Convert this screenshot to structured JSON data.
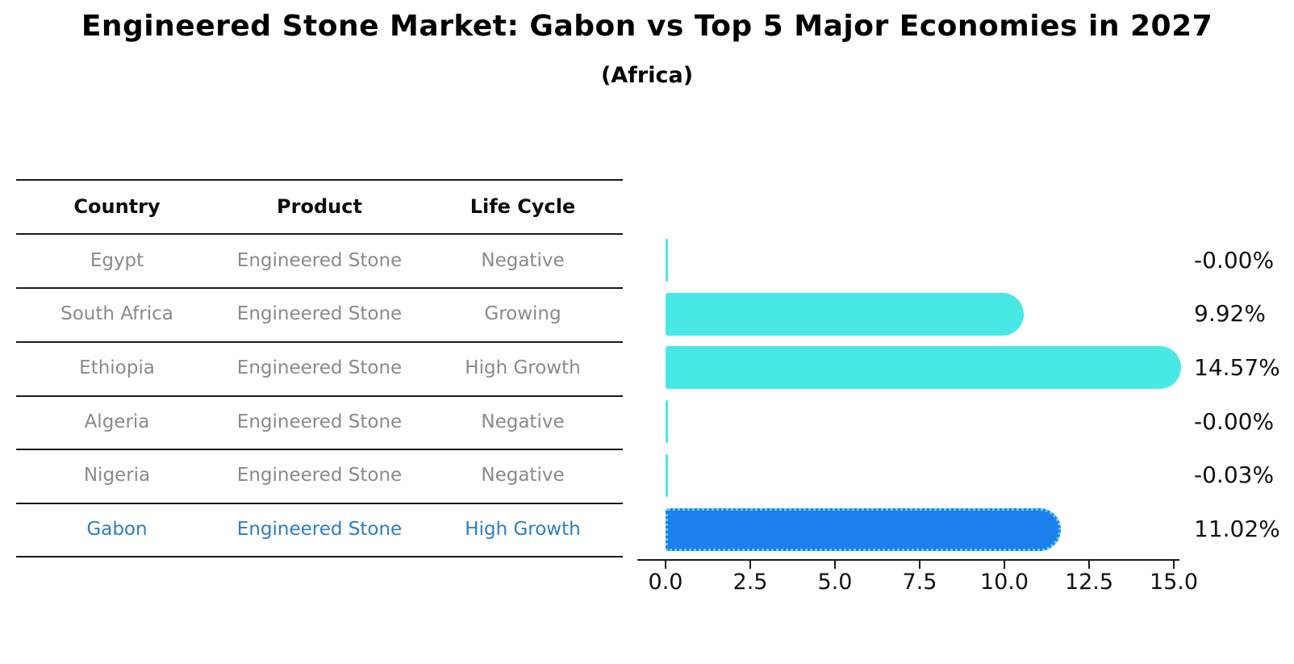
{
  "title": "Engineered Stone Market: Gabon vs Top 5 Major Economies in 2027",
  "subtitle": "(Africa)",
  "table": {
    "headers": [
      "Country",
      "Product",
      "Life Cycle"
    ],
    "rows": [
      {
        "country": "Egypt",
        "product": "Engineered Stone",
        "life_cycle": "Negative",
        "highlight": false
      },
      {
        "country": "South Africa",
        "product": "Engineered Stone",
        "life_cycle": "Growing",
        "highlight": false
      },
      {
        "country": "Ethiopia",
        "product": "Engineered Stone",
        "life_cycle": "High Growth",
        "highlight": false
      },
      {
        "country": "Algeria",
        "product": "Engineered Stone",
        "life_cycle": "Negative",
        "highlight": false
      },
      {
        "country": "Nigeria",
        "product": "Engineered Stone",
        "life_cycle": "Negative",
        "highlight": false
      },
      {
        "country": "Gabon",
        "product": "Engineered Stone",
        "life_cycle": "High Growth",
        "highlight": true
      }
    ]
  },
  "chart_data": {
    "type": "bar",
    "orientation": "horizontal",
    "title": "Engineered Stone Market: Gabon vs Top 5 Major Economies in 2027 (Africa)",
    "categories": [
      "Egypt",
      "South Africa",
      "Ethiopia",
      "Algeria",
      "Nigeria",
      "Gabon"
    ],
    "values": [
      -0.0,
      9.92,
      14.57,
      -0.0,
      -0.03,
      11.02
    ],
    "value_labels": [
      "-0.00%",
      "9.92%",
      "14.57%",
      "-0.00%",
      "-0.03%",
      "11.02%"
    ],
    "x_ticks": [
      "0.0",
      "2.5",
      "5.0",
      "7.5",
      "10.0",
      "12.5",
      "15.0"
    ],
    "xlim": [
      0,
      15
    ],
    "grid": false,
    "legend": "none",
    "highlight_index": 5,
    "colors": {
      "bar": "#48e9e4",
      "highlight_bar": "#1c80ec",
      "highlight_border": "#5bd0f3",
      "text_muted": "#8a8a8a",
      "text_highlight": "#2e7ebe",
      "axis": "#1a1a1a"
    }
  }
}
